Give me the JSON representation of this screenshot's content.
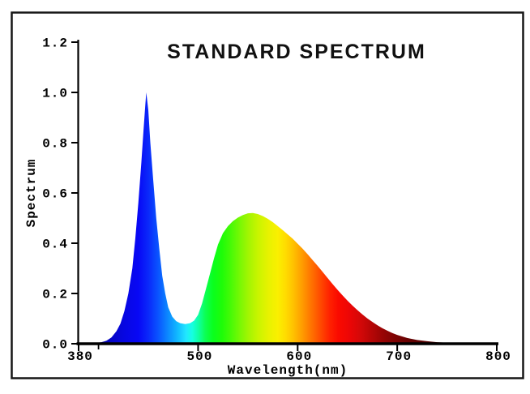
{
  "figure": {
    "background": "#ffffff",
    "border_color": "#161616",
    "text_color": "#000000"
  },
  "chart_data": {
    "type": "area",
    "title": "STANDARD SPECTRUM",
    "xlabel": "Wavelength(nm)",
    "ylabel": "Spectrum",
    "xlim": [
      380,
      800
    ],
    "ylim": [
      0,
      1.2
    ],
    "grid": false,
    "legend": "none",
    "x_ticks": [
      {
        "v": 380,
        "label": "380"
      },
      {
        "v": 500,
        "label": "500"
      },
      {
        "v": 600,
        "label": "600"
      },
      {
        "v": 700,
        "label": "700"
      },
      {
        "v": 800,
        "label": "800"
      }
    ],
    "x_minor_ticks": [
      400
    ],
    "y_ticks": [
      {
        "v": 0.0,
        "label": "0.0"
      },
      {
        "v": 0.2,
        "label": "0.2"
      },
      {
        "v": 0.4,
        "label": "0.4"
      },
      {
        "v": 0.6,
        "label": "0.6"
      },
      {
        "v": 0.8,
        "label": "0.8"
      },
      {
        "v": 1.0,
        "label": "1.0"
      },
      {
        "v": 1.2,
        "label": "1.2"
      }
    ],
    "features": {
      "blue_peak": {
        "wavelength": 448,
        "value": 1.0
      },
      "valley": {
        "wavelength": 487,
        "value": 0.08
      },
      "phosphor_peak": {
        "wavelength": 551,
        "value": 0.52
      }
    },
    "series": [
      {
        "name": "standard-spectrum",
        "fill": "wavelength-gradient",
        "points": [
          [
            380,
            0.0
          ],
          [
            395,
            0.002
          ],
          [
            403,
            0.006
          ],
          [
            408,
            0.012
          ],
          [
            413,
            0.025
          ],
          [
            418,
            0.05
          ],
          [
            422,
            0.08
          ],
          [
            426,
            0.13
          ],
          [
            430,
            0.2
          ],
          [
            434,
            0.3
          ],
          [
            437,
            0.42
          ],
          [
            440,
            0.56
          ],
          [
            443,
            0.72
          ],
          [
            445,
            0.84
          ],
          [
            447,
            0.95
          ],
          [
            448,
            1.0
          ],
          [
            450,
            0.93
          ],
          [
            452,
            0.8
          ],
          [
            455,
            0.65
          ],
          [
            458,
            0.5
          ],
          [
            461,
            0.38
          ],
          [
            464,
            0.27
          ],
          [
            467,
            0.2
          ],
          [
            470,
            0.145
          ],
          [
            474,
            0.108
          ],
          [
            478,
            0.09
          ],
          [
            482,
            0.082
          ],
          [
            487,
            0.078
          ],
          [
            492,
            0.082
          ],
          [
            496,
            0.092
          ],
          [
            500,
            0.115
          ],
          [
            504,
            0.16
          ],
          [
            508,
            0.22
          ],
          [
            512,
            0.28
          ],
          [
            516,
            0.34
          ],
          [
            520,
            0.395
          ],
          [
            525,
            0.44
          ],
          [
            530,
            0.468
          ],
          [
            535,
            0.488
          ],
          [
            540,
            0.502
          ],
          [
            545,
            0.512
          ],
          [
            550,
            0.519
          ],
          [
            555,
            0.52
          ],
          [
            560,
            0.516
          ],
          [
            565,
            0.508
          ],
          [
            570,
            0.497
          ],
          [
            575,
            0.484
          ],
          [
            580,
            0.468
          ],
          [
            585,
            0.452
          ],
          [
            590,
            0.435
          ],
          [
            595,
            0.418
          ],
          [
            600,
            0.398
          ],
          [
            605,
            0.378
          ],
          [
            610,
            0.356
          ],
          [
            615,
            0.333
          ],
          [
            620,
            0.31
          ],
          [
            625,
            0.286
          ],
          [
            630,
            0.262
          ],
          [
            635,
            0.238
          ],
          [
            640,
            0.215
          ],
          [
            645,
            0.193
          ],
          [
            650,
            0.172
          ],
          [
            655,
            0.152
          ],
          [
            660,
            0.134
          ],
          [
            665,
            0.117
          ],
          [
            670,
            0.101
          ],
          [
            675,
            0.087
          ],
          [
            680,
            0.074
          ],
          [
            685,
            0.062
          ],
          [
            690,
            0.052
          ],
          [
            695,
            0.043
          ],
          [
            700,
            0.035
          ],
          [
            710,
            0.023
          ],
          [
            720,
            0.015
          ],
          [
            730,
            0.01
          ],
          [
            740,
            0.006
          ],
          [
            750,
            0.004
          ],
          [
            760,
            0.0025
          ],
          [
            770,
            0.0015
          ],
          [
            780,
            0.001
          ],
          [
            790,
            0.0005
          ],
          [
            800,
            0.0002
          ]
        ]
      }
    ],
    "gradient_stops": [
      [
        380,
        "#03034F"
      ],
      [
        395,
        "#040488"
      ],
      [
        410,
        "#0606C0"
      ],
      [
        425,
        "#0707E0"
      ],
      [
        440,
        "#0808F5"
      ],
      [
        450,
        "#0A28FA"
      ],
      [
        460,
        "#0A55FF"
      ],
      [
        470,
        "#0C8AFF"
      ],
      [
        480,
        "#12BDFF"
      ],
      [
        488,
        "#22E6FF"
      ],
      [
        494,
        "#16FFE2"
      ],
      [
        500,
        "#10FFA8"
      ],
      [
        507,
        "#0CFF55"
      ],
      [
        515,
        "#0AFF1E"
      ],
      [
        524,
        "#1EFC08"
      ],
      [
        533,
        "#48FA06"
      ],
      [
        542,
        "#78F804"
      ],
      [
        551,
        "#A4F502"
      ],
      [
        560,
        "#C8F500"
      ],
      [
        570,
        "#E6F200"
      ],
      [
        580,
        "#FAF000"
      ],
      [
        588,
        "#FFDC00"
      ],
      [
        596,
        "#FFC000"
      ],
      [
        605,
        "#FF9A00"
      ],
      [
        614,
        "#FF7200"
      ],
      [
        623,
        "#FF4A00"
      ],
      [
        632,
        "#FF2200"
      ],
      [
        641,
        "#FA0A00"
      ],
      [
        652,
        "#EC0606"
      ],
      [
        663,
        "#D40808"
      ],
      [
        675,
        "#B40606"
      ],
      [
        688,
        "#920404"
      ],
      [
        700,
        "#7A0303"
      ],
      [
        715,
        "#620202"
      ],
      [
        735,
        "#540101"
      ],
      [
        760,
        "#4C0101"
      ],
      [
        800,
        "#470101"
      ]
    ]
  }
}
